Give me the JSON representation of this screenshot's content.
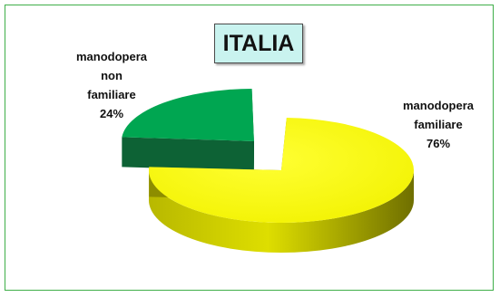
{
  "chart_data": {
    "type": "pie",
    "title": "ITALIA",
    "slices": [
      {
        "label_lines": [
          "manodopera",
          "non",
          "familiare"
        ],
        "percent_label": "24%",
        "value": 24,
        "color": "#00a651",
        "exploded": true
      },
      {
        "label_lines": [
          "manodopera",
          "familiare"
        ],
        "percent_label": "76%",
        "value": 76,
        "color": "#ffff00",
        "exploded": false
      }
    ],
    "style": "3d-exploded",
    "legend": "none"
  },
  "colors": {
    "frame_border": "#3fae49",
    "title_background": "#c9f3ef",
    "yellow_side": "#8a8a00",
    "green_side": "#005a2a"
  }
}
